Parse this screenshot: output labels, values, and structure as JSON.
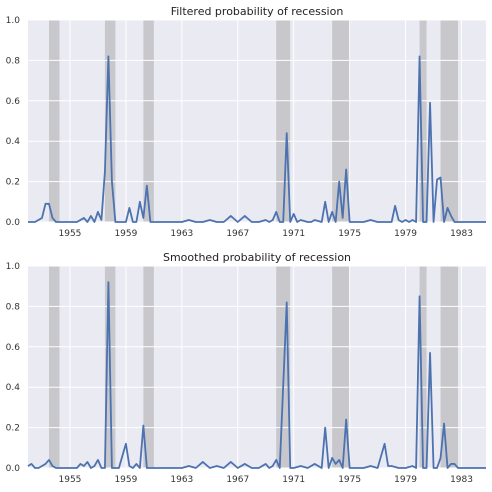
{
  "chart_data": [
    {
      "type": "line",
      "title": "Filtered probability of recession",
      "xlabel": "",
      "ylabel": "",
      "xlim": [
        1952.0,
        1984.75
      ],
      "ylim": [
        0,
        1.0
      ],
      "grid": true,
      "x_ticks": [
        "1955",
        "1959",
        "1963",
        "1967",
        "1971",
        "1975",
        "1979",
        "1983"
      ],
      "y_ticks": [
        "0.0",
        "0.2",
        "0.4",
        "0.6",
        "0.8",
        "1.0"
      ],
      "recession_bands": [
        [
          1953.5,
          1954.25
        ],
        [
          1957.5,
          1958.25
        ],
        [
          1960.25,
          1961.0
        ],
        [
          1969.75,
          1970.75
        ],
        [
          1973.75,
          1975.0
        ],
        [
          1980.0,
          1980.5
        ],
        [
          1981.5,
          1982.75
        ]
      ],
      "line_color": "#4c72b0",
      "band_color": "#c7c7cc",
      "series": [
        {
          "x": [
            1952.0,
            1952.5,
            1953.0,
            1953.25,
            1953.5,
            1953.75,
            1954.0,
            1954.5,
            1955.0,
            1955.5,
            1956.0,
            1956.25,
            1956.5,
            1956.75,
            1957.0,
            1957.25,
            1957.5,
            1957.75,
            1958.0,
            1958.25,
            1958.5,
            1959.0,
            1959.25,
            1959.5,
            1959.75,
            1960.0,
            1960.25,
            1960.5,
            1960.75,
            1961.0,
            1961.5,
            1962.0,
            1962.5,
            1963.0,
            1963.5,
            1964.0,
            1964.5,
            1965.0,
            1965.5,
            1966.0,
            1966.5,
            1967.0,
            1967.5,
            1968.0,
            1968.5,
            1969.0,
            1969.25,
            1969.5,
            1969.75,
            1970.0,
            1970.25,
            1970.5,
            1970.75,
            1971.0,
            1971.25,
            1971.5,
            1972.0,
            1972.25,
            1972.5,
            1973.0,
            1973.25,
            1973.5,
            1973.75,
            1974.0,
            1974.25,
            1974.5,
            1974.75,
            1975.0,
            1975.25,
            1975.5,
            1976.0,
            1976.5,
            1977.0,
            1977.25,
            1977.5,
            1978.0,
            1978.25,
            1978.5,
            1978.75,
            1979.0,
            1979.25,
            1979.5,
            1979.75,
            1980.0,
            1980.25,
            1980.5,
            1980.75,
            1981.0,
            1981.25,
            1981.5,
            1981.75,
            1982.0,
            1982.25,
            1982.5,
            1982.75,
            1983.0,
            1983.5,
            1984.0,
            1984.75
          ],
          "y": [
            0.0,
            0.0,
            0.02,
            0.09,
            0.09,
            0.02,
            0.0,
            0.0,
            0.0,
            0.0,
            0.02,
            0.0,
            0.03,
            0.0,
            0.05,
            0.01,
            0.25,
            0.82,
            0.2,
            0.0,
            0.0,
            0.0,
            0.07,
            0.0,
            0.0,
            0.1,
            0.02,
            0.18,
            0.0,
            0.0,
            0.0,
            0.0,
            0.0,
            0.0,
            0.01,
            0.0,
            0.0,
            0.01,
            0.0,
            0.0,
            0.03,
            0.0,
            0.03,
            0.0,
            0.0,
            0.01,
            0.0,
            0.01,
            0.05,
            0.0,
            0.0,
            0.44,
            0.0,
            0.04,
            0.0,
            0.01,
            0.0,
            0.0,
            0.01,
            0.0,
            0.1,
            0.0,
            0.05,
            0.0,
            0.2,
            0.02,
            0.26,
            0.0,
            0.0,
            0.0,
            0.0,
            0.01,
            0.0,
            0.0,
            0.0,
            0.0,
            0.08,
            0.01,
            0.0,
            0.01,
            0.0,
            0.01,
            0.0,
            0.82,
            0.0,
            0.0,
            0.59,
            0.0,
            0.21,
            0.22,
            0.0,
            0.07,
            0.03,
            0.0,
            0.0,
            0.0,
            0.0,
            0.0,
            0.0
          ]
        }
      ]
    },
    {
      "type": "line",
      "title": "Smoothed probability of recession",
      "xlabel": "",
      "ylabel": "",
      "xlim": [
        1952.0,
        1984.75
      ],
      "ylim": [
        0,
        1.0
      ],
      "grid": true,
      "x_ticks": [
        "1955",
        "1959",
        "1963",
        "1967",
        "1971",
        "1975",
        "1979",
        "1983"
      ],
      "y_ticks": [
        "0.0",
        "0.2",
        "0.4",
        "0.6",
        "0.8",
        "1.0"
      ],
      "recession_bands": [
        [
          1953.5,
          1954.25
        ],
        [
          1957.5,
          1958.25
        ],
        [
          1960.25,
          1961.0
        ],
        [
          1969.75,
          1970.75
        ],
        [
          1973.75,
          1975.0
        ],
        [
          1980.0,
          1980.5
        ],
        [
          1981.5,
          1982.75
        ]
      ],
      "line_color": "#4c72b0",
      "band_color": "#c7c7cc",
      "series": [
        {
          "x": [
            1952.0,
            1952.25,
            1952.5,
            1952.75,
            1953.0,
            1953.25,
            1953.5,
            1953.75,
            1954.0,
            1954.5,
            1955.0,
            1955.5,
            1955.75,
            1956.0,
            1956.25,
            1956.5,
            1956.75,
            1957.0,
            1957.25,
            1957.5,
            1957.75,
            1958.0,
            1958.25,
            1958.5,
            1959.0,
            1959.25,
            1959.5,
            1959.75,
            1960.0,
            1960.25,
            1960.5,
            1960.75,
            1961.0,
            1961.5,
            1962.0,
            1962.5,
            1963.0,
            1963.5,
            1964.0,
            1964.5,
            1965.0,
            1965.5,
            1966.0,
            1966.5,
            1967.0,
            1967.5,
            1968.0,
            1968.5,
            1969.0,
            1969.25,
            1969.5,
            1969.75,
            1970.0,
            1970.5,
            1970.75,
            1971.0,
            1971.5,
            1972.0,
            1972.5,
            1973.0,
            1973.25,
            1973.5,
            1973.75,
            1974.0,
            1974.25,
            1974.5,
            1974.75,
            1975.0,
            1975.25,
            1975.5,
            1976.0,
            1976.5,
            1977.0,
            1977.5,
            1977.75,
            1978.0,
            1978.5,
            1979.0,
            1979.5,
            1979.75,
            1980.0,
            1980.25,
            1980.5,
            1980.75,
            1981.0,
            1981.25,
            1981.5,
            1981.75,
            1982.0,
            1982.25,
            1982.5,
            1982.75,
            1983.0,
            1983.5,
            1984.0,
            1984.75
          ],
          "y": [
            0.01,
            0.02,
            0.0,
            0.0,
            0.01,
            0.02,
            0.04,
            0.01,
            0.0,
            0.0,
            0.0,
            0.0,
            0.02,
            0.01,
            0.03,
            0.0,
            0.01,
            0.04,
            0.0,
            0.0,
            0.92,
            0.0,
            0.0,
            0.0,
            0.12,
            0.01,
            0.0,
            0.02,
            0.0,
            0.21,
            0.0,
            0.0,
            0.0,
            0.0,
            0.0,
            0.0,
            0.0,
            0.01,
            0.0,
            0.03,
            0.0,
            0.01,
            0.0,
            0.03,
            0.0,
            0.02,
            0.0,
            0.0,
            0.02,
            0.0,
            0.01,
            0.04,
            0.0,
            0.82,
            0.0,
            0.0,
            0.01,
            0.0,
            0.02,
            0.0,
            0.2,
            0.0,
            0.05,
            0.02,
            0.04,
            0.0,
            0.24,
            0.0,
            0.0,
            0.0,
            0.0,
            0.01,
            0.0,
            0.12,
            0.01,
            0.01,
            0.0,
            0.0,
            0.01,
            0.0,
            0.85,
            0.0,
            0.0,
            0.57,
            0.0,
            0.0,
            0.05,
            0.22,
            0.0,
            0.02,
            0.02,
            0.0,
            0.0,
            0.0,
            0.0,
            0.0
          ]
        }
      ]
    }
  ]
}
